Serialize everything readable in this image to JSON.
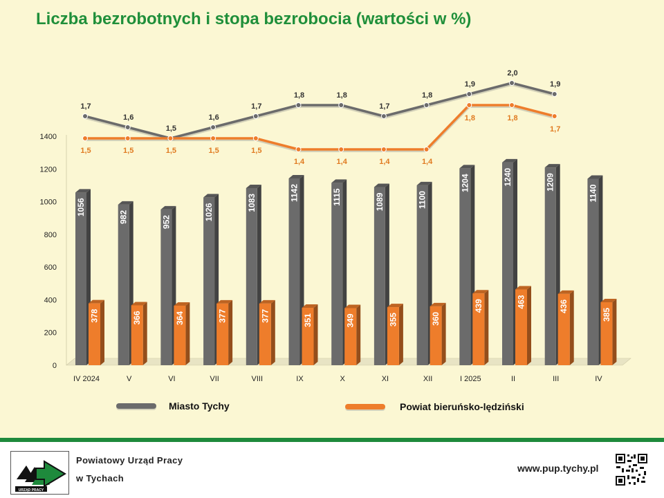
{
  "title": "Liczba bezrobotnych i stopa bezrobocia (wartości w %)",
  "footer": {
    "org_line1": "Powiatowy Urząd Pracy",
    "org_line2": "w Tychach",
    "logo_text": "URZĄD PRACY",
    "url": "www.pup.tychy.pl"
  },
  "colors": {
    "city": "#6b6b6b",
    "county": "#ee7d2b",
    "accent_green": "#1e8a3c",
    "title_green": "#1f8f3a"
  },
  "chart_data": {
    "type": "bar",
    "title": "Liczba bezrobotnych i stopa bezrobocia (wartości w %)",
    "categories": [
      "IV 2024",
      "V",
      "VI",
      "VII",
      "VIII",
      "IX",
      "X",
      "XI",
      "XII",
      "I 2025",
      "II",
      "III",
      "IV"
    ],
    "ylim": [
      0,
      1400
    ],
    "yticks": [
      0,
      200,
      400,
      600,
      800,
      1000,
      1200,
      1400
    ],
    "grid": false,
    "legend": "bottom",
    "series": [
      {
        "name": "Miasto Tychy",
        "type": "bar",
        "values": [
          1056,
          982,
          952,
          1026,
          1083,
          1142,
          1115,
          1089,
          1100,
          1204,
          1240,
          1209,
          1140
        ]
      },
      {
        "name": "Powiat bieruńsko-lędziński",
        "type": "bar",
        "values": [
          378,
          366,
          364,
          377,
          377,
          351,
          349,
          355,
          360,
          439,
          463,
          436,
          385
        ]
      }
    ],
    "rates": [
      {
        "series": "Miasto Tychy",
        "type": "line",
        "values": [
          1.7,
          1.6,
          1.5,
          1.6,
          1.7,
          1.8,
          1.8,
          1.7,
          1.8,
          1.9,
          2.0,
          1.9
        ],
        "labels": [
          "1,7",
          "1,6",
          "1,5",
          "1,6",
          "1,7",
          "1,8",
          "1,8",
          "1,7",
          "1,8",
          "1,9",
          "2,0",
          "1,9"
        ]
      },
      {
        "series": "Powiat bieruńsko-lędziński",
        "type": "line",
        "values": [
          1.5,
          1.5,
          1.5,
          1.5,
          1.5,
          1.4,
          1.4,
          1.4,
          1.4,
          1.8,
          1.8,
          1.7
        ],
        "labels": [
          "1,5",
          "1,5",
          "1,5",
          "1,5",
          "1,5",
          "1,4",
          "1,4",
          "1,4",
          "1,4",
          "1,8",
          "1,8",
          "1,7"
        ]
      }
    ]
  }
}
